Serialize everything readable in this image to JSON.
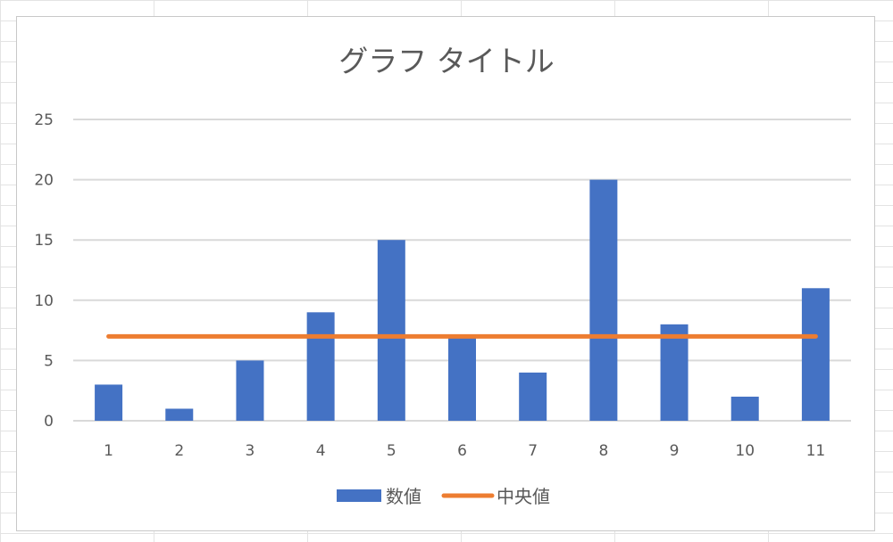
{
  "chart_data": {
    "type": "bar",
    "title": "グラフ タイトル",
    "categories": [
      "1",
      "2",
      "3",
      "4",
      "5",
      "6",
      "7",
      "8",
      "9",
      "10",
      "11"
    ],
    "series": [
      {
        "name": "数値",
        "type": "bar",
        "color": "#4472C4",
        "values": [
          3,
          1,
          5,
          9,
          15,
          7,
          4,
          20,
          8,
          2,
          11
        ]
      },
      {
        "name": "中央値",
        "type": "line",
        "color": "#ED7D31",
        "values": [
          7,
          7,
          7,
          7,
          7,
          7,
          7,
          7,
          7,
          7,
          7
        ]
      }
    ],
    "ylim": [
      0,
      25
    ],
    "yticks": [
      0,
      5,
      10,
      15,
      20,
      25
    ],
    "grid": true,
    "legend": "bottom"
  }
}
